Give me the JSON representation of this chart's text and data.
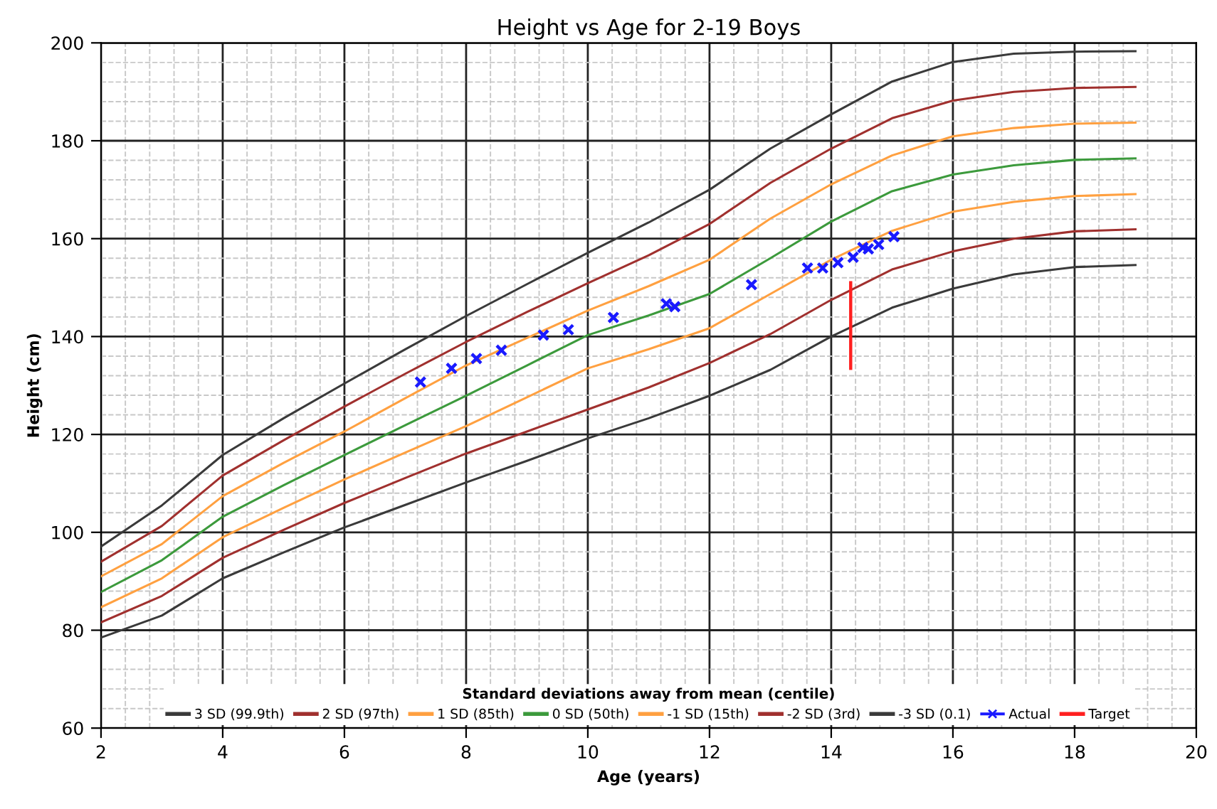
{
  "chart_data": {
    "type": "line",
    "title": "Height vs Age for 2-19 Boys",
    "xlabel": "Age (years)",
    "ylabel": "Height (cm)",
    "legend_title": "Standard deviations away from mean (centile)",
    "x": [
      2,
      3,
      4,
      5,
      6,
      7,
      8,
      9,
      10,
      11,
      12,
      13,
      14,
      15,
      16,
      17,
      18,
      19
    ],
    "series": [
      {
        "name": "3 SD (99.9th)",
        "color": "#3a3a3a",
        "values": [
          97.1,
          105.5,
          115.8,
          123.3,
          130.4,
          137.4,
          144.2,
          150.7,
          157.1,
          163.3,
          170.0,
          178.4,
          185.4,
          192.1,
          196.1,
          197.8,
          198.2,
          198.3
        ]
      },
      {
        "name": "2 SD (97th)",
        "color": "#a0302e",
        "values": [
          94.0,
          101.3,
          111.6,
          118.8,
          125.7,
          132.4,
          138.9,
          145.0,
          150.9,
          156.6,
          163.0,
          171.4,
          178.4,
          184.6,
          188.2,
          190.0,
          190.8,
          191.0
        ]
      },
      {
        "name": "1 SD (85th)",
        "color": "#ffa040",
        "values": [
          91.0,
          97.6,
          107.4,
          114.2,
          120.6,
          127.4,
          134.1,
          139.7,
          145.3,
          150.3,
          155.7,
          164.1,
          171.1,
          177.0,
          180.9,
          182.6,
          183.5,
          183.7
        ]
      },
      {
        "name": "0 SD (50th)",
        "color": "#3c9a3c",
        "values": [
          87.8,
          94.3,
          103.2,
          109.6,
          115.8,
          121.9,
          127.9,
          134.1,
          140.3,
          144.3,
          148.7,
          156.0,
          163.5,
          169.7,
          173.1,
          175.0,
          176.1,
          176.4
        ]
      },
      {
        "name": "-1 SD (15th)",
        "color": "#ffa040",
        "values": [
          84.7,
          90.6,
          99.0,
          105.0,
          110.8,
          116.3,
          121.7,
          127.6,
          133.5,
          137.4,
          141.7,
          148.7,
          155.7,
          161.6,
          165.5,
          167.5,
          168.7,
          169.1
        ]
      },
      {
        "name": "-2 SD (3rd)",
        "color": "#a0302e",
        "values": [
          81.6,
          87.0,
          94.8,
          100.5,
          106.0,
          111.1,
          116.1,
          120.6,
          125.1,
          129.6,
          134.6,
          140.5,
          147.5,
          153.7,
          157.4,
          160.0,
          161.5,
          161.9
        ]
      },
      {
        "name": "-3 SD (0.1)",
        "color": "#3a3a3a",
        "values": [
          78.5,
          83.0,
          90.6,
          95.9,
          101.0,
          105.6,
          110.2,
          114.6,
          119.2,
          123.3,
          127.9,
          133.2,
          140.0,
          145.9,
          149.8,
          152.7,
          154.2,
          154.6
        ]
      },
      {
        "name": "Actual",
        "type": "scatter",
        "marker": "cross",
        "color": "#1a1aff",
        "x": [
          7.25,
          7.76,
          8.17,
          8.58,
          9.27,
          9.68,
          10.42,
          11.29,
          11.43,
          12.69,
          13.61,
          13.86,
          14.11,
          14.36,
          14.52,
          14.61,
          14.78,
          15.03
        ],
        "values": [
          130.7,
          133.5,
          135.5,
          137.2,
          140.3,
          141.4,
          143.9,
          146.7,
          146.1,
          150.6,
          154.0,
          154.0,
          155.1,
          156.2,
          158.2,
          157.9,
          158.8,
          160.4
        ]
      },
      {
        "name": "Target",
        "color": "#ff2020",
        "x": [
          14.32,
          14.32
        ],
        "values": [
          133.5,
          151.0
        ]
      }
    ],
    "xlim": [
      2,
      20
    ],
    "xticks": [
      2,
      4,
      6,
      8,
      10,
      12,
      14,
      16,
      18,
      20
    ],
    "ylim": [
      60,
      200
    ],
    "yticks": [
      60,
      80,
      100,
      120,
      140,
      160,
      180,
      200
    ],
    "grid": true,
    "legend": "bottom"
  }
}
